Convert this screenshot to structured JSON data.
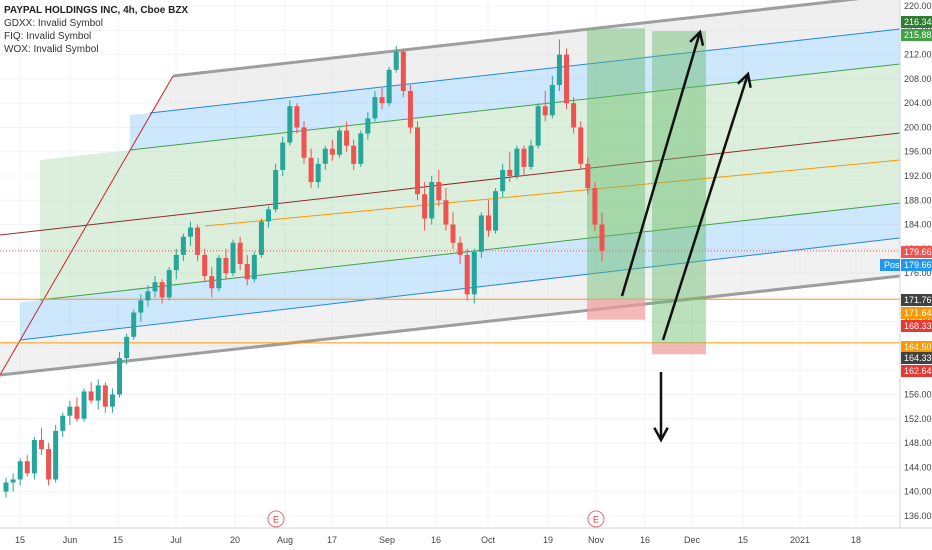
{
  "legend": {
    "title": "PAYPAL HOLDINGS INC, 4h, Cboe BZX",
    "lines": [
      "GDXX: Invalid Symbol",
      "FIQ: Invalid Symbol",
      "WOX: Invalid Symbol"
    ]
  },
  "colors": {
    "up": "#26a69a",
    "down": "#ef5350",
    "green_zone": "#a5d6a7",
    "blue_zone": "#90caf9",
    "gray_zone": "#e0e0e0",
    "channel_edge": "#9e9e9e",
    "blue_line": "#1e88e5",
    "green_line": "#43a047",
    "median_line": "#8d2d2d",
    "orange_line": "#ff9800",
    "target_green": "#66bb6a",
    "stop_red": "#ef9a9a"
  },
  "chart_data": {
    "type": "candlestick",
    "title": "PAYPAL HOLDINGS INC, 4h, Cboe BZX",
    "y_range": [
      134,
      221
    ],
    "y_ticks": [
      136,
      140,
      144,
      148,
      152,
      156,
      160,
      164,
      168,
      172,
      176,
      180,
      184,
      188,
      192,
      196,
      200,
      204,
      208,
      212,
      216,
      220
    ],
    "x_ticks": [
      "15",
      "Jun",
      "15",
      "Jul",
      "20",
      "Aug",
      "17",
      "Sep",
      "16",
      "Oct",
      "19",
      "Nov",
      "16",
      "Dec",
      "15",
      "2021",
      "18"
    ],
    "event_markers": [
      {
        "label": "E",
        "x_tick": "20"
      },
      {
        "label": "E",
        "x_tick": "Nov"
      }
    ],
    "price_tags": [
      {
        "value": "216.34",
        "color": "#2e7d32"
      },
      {
        "value": "215.88",
        "color": "#43a047"
      },
      {
        "value": "179.66",
        "color": "#ef5350"
      },
      {
        "value": "179.66",
        "color": "#2196f3",
        "prefix": "Post"
      },
      {
        "value": "171.76",
        "color": "#424242"
      },
      {
        "value": "171.64",
        "color": "#ff9800"
      },
      {
        "value": "168.33",
        "color": "#e53935"
      },
      {
        "value": "164.50",
        "color": "#ff9800"
      },
      {
        "value": "164.33",
        "color": "#424242"
      },
      {
        "value": "162.64",
        "color": "#e53935"
      }
    ],
    "horizontal_levels": [
      171.7,
      164.5
    ],
    "positions": [
      {
        "type": "long",
        "entry": 171.76,
        "target": 216.34,
        "stop": 168.33
      },
      {
        "type": "long",
        "entry": 164.33,
        "target": 215.88,
        "stop": 162.64
      }
    ],
    "series": [
      {
        "values": [
          [
            140.0,
            142.3,
            139.0,
            141.5
          ],
          [
            141.5,
            143.0,
            140.0,
            142.0
          ],
          [
            142.0,
            145.5,
            141.0,
            145.0
          ],
          [
            145.0,
            146.0,
            142.5,
            143.0
          ],
          [
            143.0,
            149.0,
            142.0,
            148.5
          ],
          [
            148.5,
            150.5,
            146.0,
            147.0
          ],
          [
            147.0,
            148.0,
            141.0,
            142.0
          ],
          [
            142.0,
            151.0,
            141.5,
            150.0
          ],
          [
            150.0,
            153.0,
            149.0,
            152.5
          ],
          [
            152.5,
            155.0,
            151.0,
            154.0
          ],
          [
            154.0,
            155.5,
            151.5,
            152.0
          ],
          [
            152.0,
            157.0,
            151.5,
            156.5
          ],
          [
            156.5,
            158.0,
            154.5,
            155.0
          ],
          [
            155.0,
            158.5,
            153.5,
            157.5
          ],
          [
            157.5,
            158.0,
            153.0,
            154.0
          ],
          [
            154.0,
            157.0,
            153.0,
            156.0
          ],
          [
            156.0,
            163.0,
            155.5,
            162.0
          ],
          [
            162.0,
            166.0,
            161.0,
            165.5
          ],
          [
            165.5,
            170.0,
            165.0,
            169.5
          ],
          [
            169.5,
            172.5,
            168.0,
            171.5
          ],
          [
            171.5,
            174.0,
            170.5,
            173.0
          ],
          [
            173.0,
            175.5,
            172.0,
            174.5
          ],
          [
            174.5,
            175.0,
            171.0,
            172.0
          ],
          [
            172.0,
            177.0,
            171.5,
            176.5
          ],
          [
            176.5,
            180.0,
            175.0,
            179.0
          ],
          [
            179.0,
            182.5,
            178.0,
            182.0
          ],
          [
            182.0,
            184.5,
            180.5,
            183.5
          ],
          [
            183.5,
            184.0,
            178.0,
            179.0
          ],
          [
            179.0,
            180.0,
            174.5,
            175.5
          ],
          [
            175.5,
            177.0,
            172.0,
            173.5
          ],
          [
            173.5,
            179.0,
            173.0,
            178.5
          ],
          [
            178.5,
            180.0,
            175.0,
            176.0
          ],
          [
            176.0,
            181.5,
            175.5,
            181.0
          ],
          [
            181.0,
            182.0,
            176.5,
            177.5
          ],
          [
            177.5,
            179.0,
            174.0,
            175.0
          ],
          [
            175.0,
            179.5,
            174.5,
            179.0
          ],
          [
            179.0,
            185.0,
            178.5,
            184.5
          ],
          [
            184.5,
            187.0,
            183.5,
            186.5
          ],
          [
            186.5,
            194.0,
            186.0,
            193.0
          ],
          [
            193.0,
            198.5,
            192.0,
            197.5
          ],
          [
            197.5,
            204.5,
            197.0,
            203.5
          ],
          [
            203.5,
            204.0,
            199.0,
            200.0
          ],
          [
            200.0,
            201.0,
            194.0,
            195.0
          ],
          [
            195.0,
            196.5,
            190.0,
            191.0
          ],
          [
            191.0,
            195.0,
            190.0,
            194.0
          ],
          [
            194.0,
            197.0,
            193.0,
            196.5
          ],
          [
            196.5,
            198.0,
            194.5,
            195.5
          ],
          [
            195.5,
            200.0,
            195.0,
            199.5
          ],
          [
            199.5,
            201.0,
            196.0,
            197.0
          ],
          [
            197.0,
            198.0,
            193.0,
            194.0
          ],
          [
            194.0,
            199.5,
            193.5,
            199.0
          ],
          [
            199.0,
            202.5,
            198.0,
            201.5
          ],
          [
            201.5,
            206.0,
            201.0,
            205.0
          ],
          [
            205.0,
            206.5,
            203.0,
            204.0
          ],
          [
            204.0,
            210.0,
            203.5,
            209.5
          ],
          [
            209.5,
            213.5,
            209.0,
            212.5
          ],
          [
            212.5,
            213.0,
            205.0,
            206.0
          ],
          [
            206.0,
            207.0,
            199.0,
            200.0
          ],
          [
            200.0,
            201.0,
            188.0,
            189.0
          ],
          [
            189.0,
            191.0,
            183.0,
            185.0
          ],
          [
            185.0,
            192.0,
            184.0,
            191.0
          ],
          [
            191.0,
            193.0,
            187.0,
            188.0
          ],
          [
            188.0,
            190.0,
            183.0,
            184.0
          ],
          [
            184.0,
            186.0,
            180.0,
            181.0
          ],
          [
            181.0,
            182.0,
            177.5,
            179.0
          ],
          [
            179.0,
            180.0,
            171.5,
            172.5
          ],
          [
            172.5,
            180.0,
            171.0,
            179.5
          ],
          [
            179.5,
            186.0,
            178.5,
            185.5
          ],
          [
            185.5,
            188.0,
            182.0,
            183.0
          ],
          [
            183.0,
            190.0,
            182.5,
            189.5
          ],
          [
            189.5,
            194.0,
            188.5,
            193.0
          ],
          [
            193.0,
            196.0,
            191.0,
            192.0
          ],
          [
            192.0,
            197.0,
            191.5,
            196.5
          ],
          [
            196.5,
            197.0,
            192.0,
            193.5
          ],
          [
            193.5,
            198.0,
            193.0,
            197.0
          ],
          [
            197.0,
            204.0,
            196.5,
            203.5
          ],
          [
            203.5,
            206.0,
            201.0,
            202.0
          ],
          [
            202.0,
            208.5,
            201.5,
            207.0
          ],
          [
            207.0,
            214.5,
            206.0,
            212.0
          ],
          [
            212.0,
            213.0,
            203.0,
            204.0
          ],
          [
            204.0,
            205.0,
            199.0,
            200.0
          ],
          [
            200.0,
            201.0,
            193.0,
            194.0
          ],
          [
            194.0,
            195.0,
            189.0,
            190.0
          ],
          [
            190.0,
            191.0,
            183.0,
            184.0
          ],
          [
            184.0,
            186.0,
            178.0,
            179.66
          ]
        ]
      }
    ]
  }
}
